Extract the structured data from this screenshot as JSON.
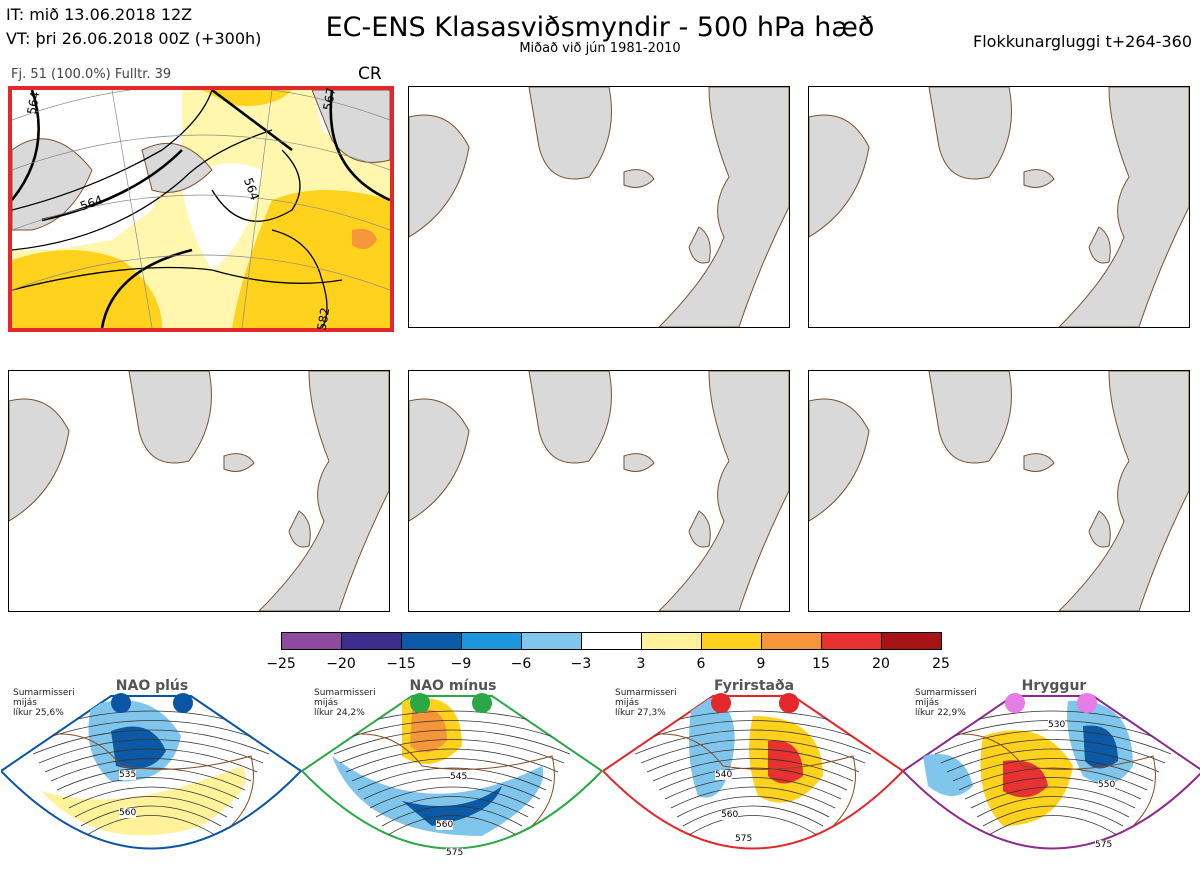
{
  "header": {
    "it_line": "IT: mið 13.06.2018 12Z",
    "vt_line": "VT: þri 26.06.2018 00Z  (+300h)",
    "title": "EC-ENS Klasasviðsmyndir - 500 hPa hæð",
    "subtitle": "Miðað við jún 1981-2010",
    "window": "Flokkunargluggi t+264-360"
  },
  "cluster": {
    "info": "Fj. 51 (100.0%)   Fulltr. 39",
    "code": "CR",
    "contour_labels": [
      "564",
      "564",
      "567",
      "564",
      "582"
    ]
  },
  "colorbar": {
    "labels": [
      "−25",
      "−20",
      "−15",
      "−9",
      "−6",
      "−3",
      "3",
      "6",
      "9",
      "15",
      "20",
      "25"
    ],
    "colors": [
      "#8e4a9e",
      "#3c2e8c",
      "#0c5aa6",
      "#1e96dc",
      "#80c6ec",
      "#ffffff",
      "#fff29a",
      "#ffd21e",
      "#f5963a",
      "#e83232",
      "#a81416"
    ]
  },
  "regimes": [
    {
      "name": "NAO plús",
      "season": "Sumarmisseri",
      "mid": "mijás",
      "prob": "líkur 25,6%",
      "color": "#0b56a4",
      "dot": "#0b56a4",
      "labels": [
        "535",
        "560"
      ]
    },
    {
      "name": "NAO mínus",
      "season": "Sumarmisseri",
      "mid": "mijás",
      "prob": "líkur 24,2%",
      "color": "#29a845",
      "dot": "#29a845",
      "labels": [
        "545",
        "560",
        "575"
      ]
    },
    {
      "name": "Fyrirstaða",
      "season": "Sumarmisseri",
      "mid": "mijás",
      "prob": "líkur 27,3%",
      "color": "#e3272a",
      "dot": "#e3272a",
      "labels": [
        "540",
        "560",
        "575"
      ]
    },
    {
      "name": "Hryggur",
      "season": "Sumarmisseri",
      "mid": "mijás",
      "prob": "líkur 22,9%",
      "color": "#8e2a8e",
      "dot": "#e67ce6",
      "labels": [
        "530",
        "550",
        "575"
      ]
    }
  ]
}
